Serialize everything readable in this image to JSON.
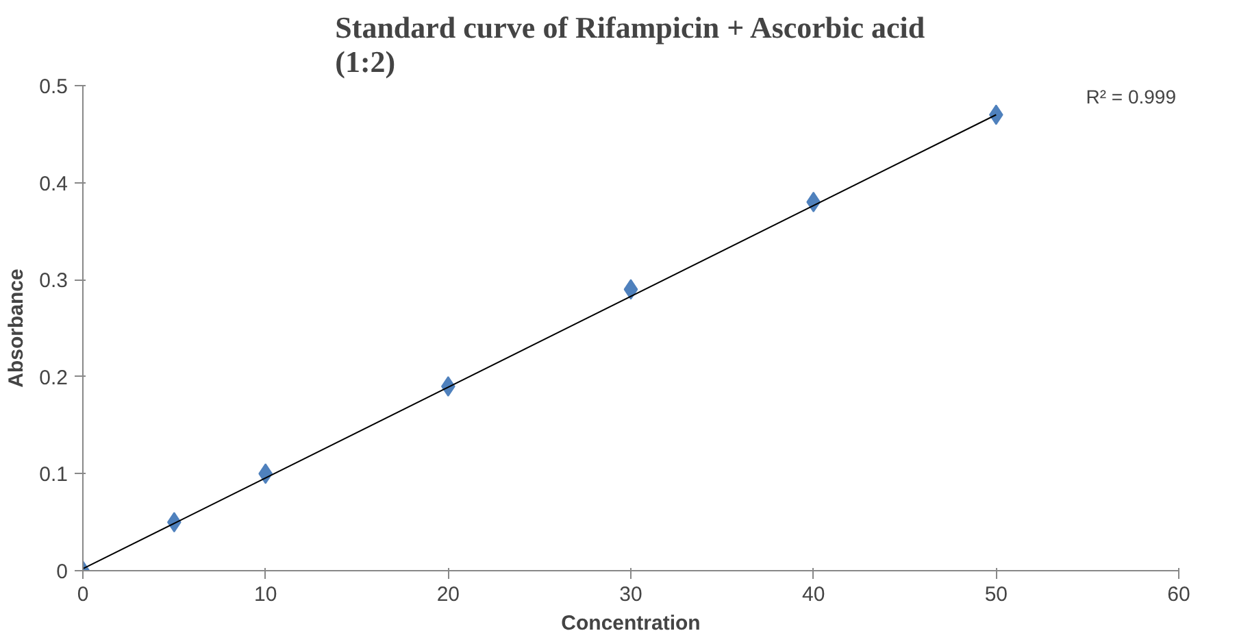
{
  "chart_data": {
    "type": "scatter",
    "title": "Standard curve of Rifampicin + Ascorbic acid (1:2)",
    "xlabel": "Concentration",
    "ylabel": "Absorbance",
    "xlim": [
      0,
      60
    ],
    "ylim": [
      0,
      0.5
    ],
    "xticks": [
      0,
      10,
      20,
      30,
      40,
      50,
      60
    ],
    "yticks": [
      0,
      0.1,
      0.2,
      0.3,
      0.4,
      0.5
    ],
    "grid": false,
    "marker": "diamond",
    "series": [
      {
        "color": "#4f81bd",
        "x": [
          0,
          5,
          10,
          20,
          30,
          40,
          50
        ],
        "values": [
          0,
          0.05,
          0.1,
          0.19,
          0.29,
          0.38,
          0.47
        ]
      },
      {
        "type": "line",
        "marker": "none",
        "color": "#000000",
        "x": [
          0,
          50
        ],
        "values": [
          0.002,
          0.47
        ]
      }
    ],
    "annotations": [
      "R² = 0.999"
    ]
  }
}
